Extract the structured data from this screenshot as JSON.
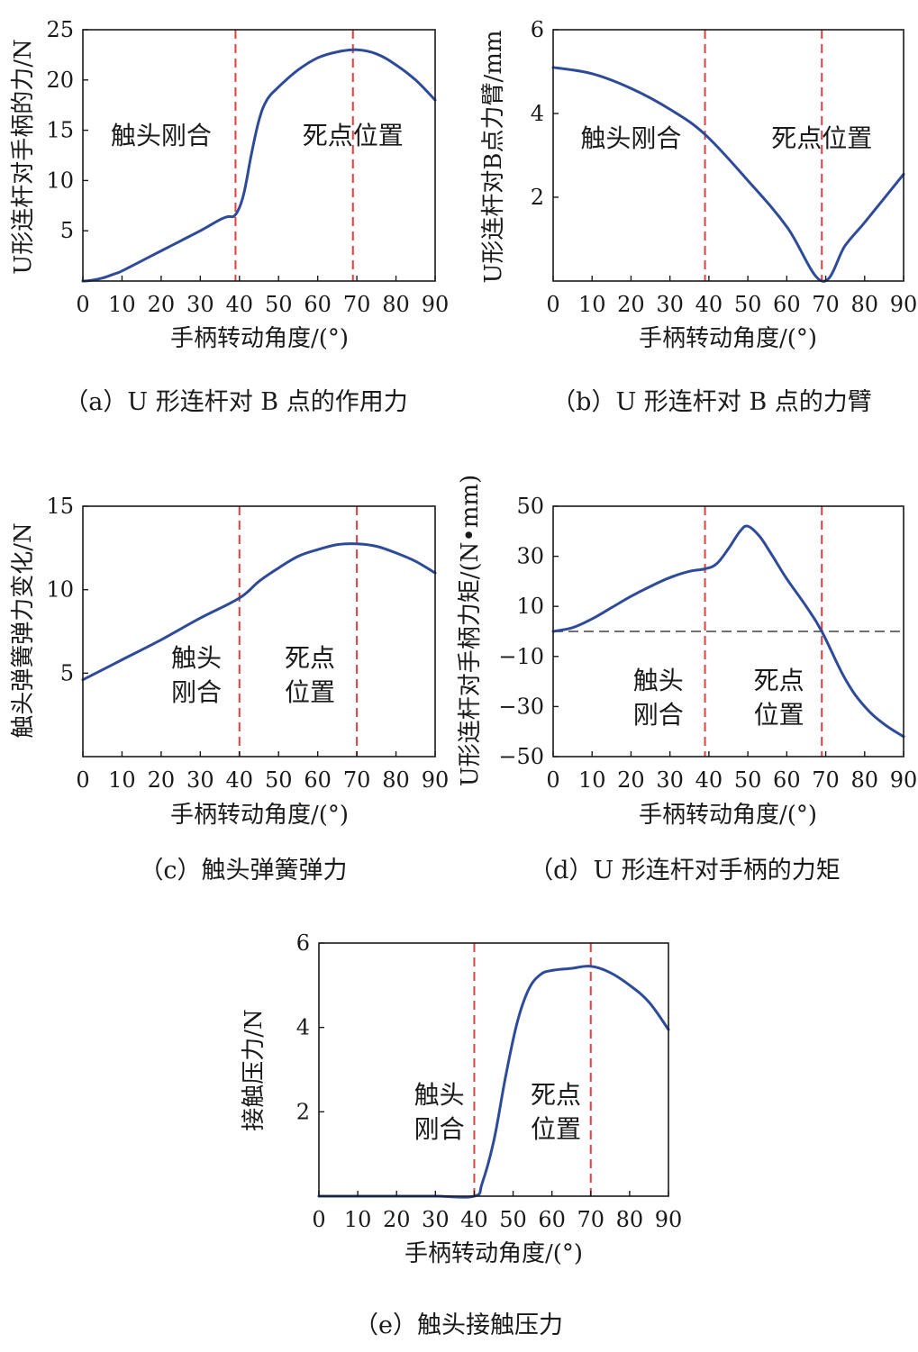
{
  "chart_data": [
    {
      "id": "a",
      "type": "line",
      "caption": "（a）U 形连杆对 B 点的作用力",
      "xlabel": "手柄转动角度/(°)",
      "ylabel": "U形连杆对手柄的力/N",
      "xlim": [
        0,
        90
      ],
      "ylim": [
        0,
        25
      ],
      "xticks": [
        0,
        10,
        20,
        30,
        40,
        50,
        60,
        70,
        80,
        90
      ],
      "yticks": [
        5,
        10,
        15,
        20,
        25
      ],
      "vlines": [
        39,
        69
      ],
      "regions": [
        {
          "lines": [
            "触头刚合"
          ],
          "x": 20,
          "y": 13.6
        },
        {
          "lines": [
            "死点位置"
          ],
          "x": 69,
          "y": 13.6
        }
      ],
      "series": [
        {
          "color": "#2e4b9a",
          "x": [
            0,
            2,
            5,
            8,
            10,
            15,
            20,
            25,
            30,
            35,
            37,
            39,
            41,
            43,
            45,
            47,
            50,
            55,
            60,
            65,
            70,
            75,
            80,
            85,
            90
          ],
          "y": [
            0,
            0.05,
            0.3,
            0.7,
            1.0,
            2.0,
            3.0,
            4.0,
            5.0,
            6.1,
            6.4,
            6.6,
            8.5,
            12.5,
            16.0,
            18.0,
            19.3,
            21.0,
            22.2,
            22.8,
            23.0,
            22.6,
            21.5,
            20.0,
            18.0
          ]
        }
      ]
    },
    {
      "id": "b",
      "type": "line",
      "caption": "（b）U 形连杆对 B 点的力臂",
      "xlabel": "手柄转动角度/(°)",
      "ylabel": "U形连杆对B点力臂/mm",
      "xlim": [
        0,
        90
      ],
      "ylim": [
        0,
        6
      ],
      "xticks": [
        0,
        10,
        20,
        30,
        40,
        50,
        60,
        70,
        80,
        90
      ],
      "yticks": [
        2,
        4,
        6
      ],
      "vlines": [
        39,
        69
      ],
      "regions": [
        {
          "lines": [
            "触头刚合"
          ],
          "x": 20,
          "y": 3.2
        },
        {
          "lines": [
            "死点位置"
          ],
          "x": 69,
          "y": 3.2
        }
      ],
      "series": [
        {
          "color": "#2e4b9a",
          "x": [
            0,
            10,
            20,
            30,
            39,
            50,
            60,
            69,
            75,
            80,
            90
          ],
          "y": [
            5.1,
            4.95,
            4.6,
            4.1,
            3.5,
            2.4,
            1.3,
            0,
            0.85,
            1.4,
            2.55
          ]
        }
      ]
    },
    {
      "id": "c",
      "type": "line",
      "caption": "（c）触头弹簧弹力",
      "xlabel": "手柄转动角度/(°)",
      "ylabel": "触头弹簧弹力变化/N",
      "xlim": [
        0,
        90
      ],
      "ylim": [
        0,
        15
      ],
      "xticks": [
        0,
        10,
        20,
        30,
        40,
        50,
        60,
        70,
        80,
        90
      ],
      "yticks": [
        5,
        10,
        15
      ],
      "vlines": [
        40,
        70
      ],
      "regions": [
        {
          "lines": [
            "触头",
            "刚合"
          ],
          "x": 29,
          "y": 5.4
        },
        {
          "lines": [
            "死点",
            "位置"
          ],
          "x": 58,
          "y": 5.4
        }
      ],
      "series": [
        {
          "color": "#2e4b9a",
          "x": [
            0,
            10,
            20,
            30,
            40,
            45,
            50,
            55,
            60,
            65,
            70,
            75,
            80,
            85,
            90
          ],
          "y": [
            4.6,
            5.8,
            7.0,
            8.3,
            9.5,
            10.5,
            11.3,
            12.0,
            12.4,
            12.7,
            12.75,
            12.6,
            12.2,
            11.7,
            11.0
          ]
        }
      ]
    },
    {
      "id": "d",
      "type": "line",
      "caption": "（d）U 形连杆对手柄的力矩",
      "xlabel": "手柄转动角度/(°)",
      "ylabel": "U形连杆对手柄力矩/(N•mm)",
      "xlim": [
        0,
        90
      ],
      "ylim": [
        -50,
        50
      ],
      "xticks": [
        0,
        10,
        20,
        30,
        40,
        50,
        60,
        70,
        80,
        90
      ],
      "yticks": [
        -50,
        -30,
        -10,
        10,
        30,
        50
      ],
      "ytick_labels": [
        "−50",
        "−30",
        "−10",
        "10",
        "30",
        "50"
      ],
      "vlines": [
        39,
        69
      ],
      "hline": 0,
      "regions": [
        {
          "lines": [
            "触头",
            "刚合"
          ],
          "x": 27,
          "y": -23
        },
        {
          "lines": [
            "死点",
            "位置"
          ],
          "x": 58,
          "y": -23
        }
      ],
      "series": [
        {
          "color": "#2e4b9a",
          "x": [
            0,
            5,
            10,
            15,
            20,
            25,
            30,
            35,
            39,
            42,
            45,
            48,
            50,
            53,
            56,
            60,
            65,
            69,
            75,
            80,
            85,
            90
          ],
          "y": [
            0,
            1.5,
            5,
            9.5,
            14,
            18,
            21.5,
            24,
            25,
            27,
            33,
            40,
            42,
            38,
            31,
            21,
            10,
            0,
            -19,
            -30,
            -37,
            -42
          ]
        }
      ]
    },
    {
      "id": "e",
      "type": "line",
      "caption": "（e）触头接触压力",
      "xlabel": "手柄转动角度/(°)",
      "ylabel": "接触压力/N",
      "xlim": [
        0,
        90
      ],
      "ylim": [
        0,
        6
      ],
      "xticks": [
        0,
        10,
        20,
        30,
        40,
        50,
        60,
        70,
        80,
        90
      ],
      "yticks": [
        2,
        4,
        6
      ],
      "vlines": [
        40,
        70
      ],
      "regions": [
        {
          "lines": [
            "触头",
            "刚合"
          ],
          "x": 31,
          "y": 2.2
        },
        {
          "lines": [
            "死点",
            "位置"
          ],
          "x": 61,
          "y": 2.2
        }
      ],
      "series": [
        {
          "color": "#2e4b9a",
          "x": [
            0,
            10,
            20,
            30,
            40,
            42,
            45,
            48,
            51,
            54,
            57,
            60,
            65,
            70,
            75,
            80,
            85,
            90
          ],
          "y": [
            0,
            0,
            0,
            0,
            0,
            0.3,
            1.3,
            2.8,
            4.1,
            4.9,
            5.25,
            5.35,
            5.4,
            5.45,
            5.3,
            5.0,
            4.6,
            3.95
          ]
        }
      ]
    }
  ],
  "colors": {
    "curve": "#2e4b9a",
    "vline": "#e04040",
    "hline": "#707070",
    "axis": "#1a1a1a"
  }
}
